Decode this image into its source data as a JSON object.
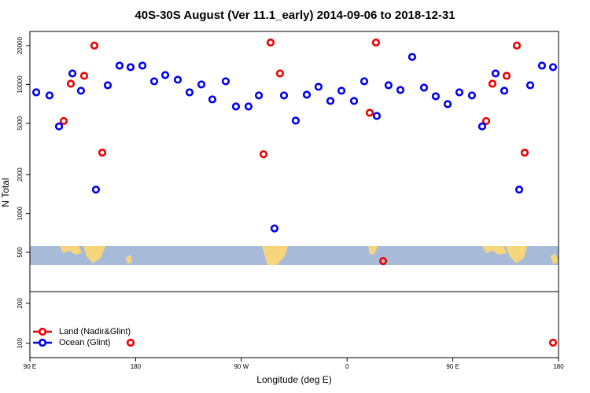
{
  "chart_data": [
    {
      "type": "scatter",
      "title": "40S-30S August (Ver 11.1_early)   2014-09-06 to 2018-12-31",
      "y_label": "N Total",
      "log_y": true,
      "xlim": [
        90,
        540
      ],
      "ylim": [
        248,
        25760
      ],
      "yticks": [
        500,
        1000,
        2000,
        5000,
        10000,
        20000
      ],
      "series": [
        {
          "name": "Land (Nadir&Glint)",
          "color": "#ee0000",
          "x": [
            118.8,
            124.8,
            136.2,
            144.9,
            151.6,
            288.9,
            294.9,
            302.9,
            379.3,
            384.6,
            390.7,
            478.4,
            483.7,
            495.8,
            504.5,
            511.2
          ],
          "values": [
            5210,
            10140,
            11670,
            20000,
            2960,
            2880,
            21140,
            12170,
            6030,
            21140,
            428,
            5210,
            10140,
            11670,
            20000,
            2960
          ]
        },
        {
          "name": "Ocean (Glint)",
          "color": "#0000ee",
          "x": [
            95.4,
            106.7,
            114.8,
            126.2,
            133.5,
            146.2,
            156.3,
            166.3,
            175.7,
            185.8,
            195.8,
            205.2,
            215.9,
            225.9,
            236.0,
            245.3,
            256.7,
            265.4,
            276.1,
            284.9,
            298.2,
            306.3,
            316.3,
            325.7,
            335.7,
            345.8,
            355.2,
            365.9,
            374.6,
            385.3,
            395.3,
            405.4,
            415.4,
            425.5,
            435.5,
            445.6,
            455.6,
            466.3,
            475.0,
            486.4,
            493.8,
            506.5,
            515.9,
            525.9,
            535.3
          ],
          "values": [
            8690,
            8220,
            4730,
            12170,
            8940,
            1530,
            9860,
            14000,
            13620,
            14000,
            10580,
            11830,
            10880,
            8690,
            10000,
            7660,
            10580,
            6750,
            6750,
            8220,
            766,
            8220,
            5240,
            8330,
            9590,
            7450,
            8940,
            7450,
            10580,
            5700,
            9860,
            9060,
            16340,
            9450,
            8100,
            7040,
            8690,
            8220,
            4730,
            12170,
            8940,
            1530,
            9860,
            14000,
            13620
          ]
        }
      ]
    },
    {
      "type": "scatter",
      "x_label": "Longitude (deg E)",
      "log_y": true,
      "xlim": [
        90,
        540
      ],
      "ylim": [
        78,
        245
      ],
      "yticks": [
        100,
        200
      ],
      "xticks": [
        {
          "value": 90,
          "label": "90 E"
        },
        180,
        {
          "value": 270,
          "label": "90 W"
        },
        {
          "value": 360,
          "label": "0"
        },
        {
          "value": 450,
          "label": "90 E"
        },
        {
          "value": 540,
          "label": "180"
        }
      ],
      "series": [
        {
          "color": "#ee0000",
          "x": [
            175.7,
            535.3
          ],
          "values": [
            101,
            101
          ]
        }
      ]
    }
  ]
}
